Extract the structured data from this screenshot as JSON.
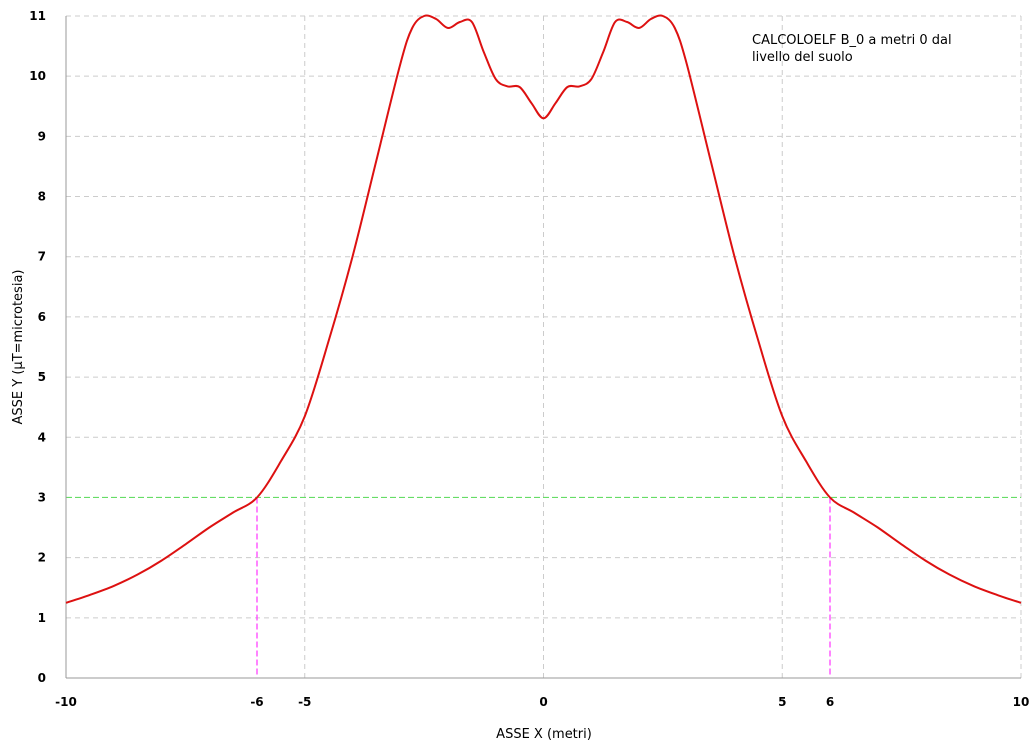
{
  "chart_data": {
    "type": "line",
    "title": "",
    "xlabel": "ASSE X (metri)",
    "ylabel": "ASSE Y (µT=microtesia)",
    "xlim": [
      -10,
      10
    ],
    "ylim": [
      0,
      11
    ],
    "grid": true,
    "annotation_lines": [
      "CALCOLOELF B_0 a metri 0 dal",
      "livello del suolo"
    ],
    "x_ticks": [
      -10,
      -6,
      -5,
      0,
      5,
      6,
      10
    ],
    "y_ticks": [
      0,
      1,
      2,
      3,
      4,
      5,
      6,
      7,
      8,
      9,
      10,
      11
    ],
    "threshold": {
      "y": 3,
      "color": "#66dd66"
    },
    "markers": [
      {
        "x": -6,
        "color": "#ff33ff"
      },
      {
        "x": 6,
        "color": "#ff33ff"
      }
    ],
    "series": [
      {
        "color": "#dd1111",
        "points": [
          [
            -10,
            1.25
          ],
          [
            -9.5,
            1.38
          ],
          [
            -9,
            1.53
          ],
          [
            -8.5,
            1.72
          ],
          [
            -8,
            1.95
          ],
          [
            -7.5,
            2.22
          ],
          [
            -7,
            2.5
          ],
          [
            -6.5,
            2.75
          ],
          [
            -6,
            3.0
          ],
          [
            -5.5,
            3.6
          ],
          [
            -5,
            4.35
          ],
          [
            -4.5,
            5.6
          ],
          [
            -4,
            7.0
          ],
          [
            -3.5,
            8.6
          ],
          [
            -3,
            10.2
          ],
          [
            -2.75,
            10.8
          ],
          [
            -2.5,
            11.0
          ],
          [
            -2.25,
            10.95
          ],
          [
            -2.0,
            10.8
          ],
          [
            -1.75,
            10.9
          ],
          [
            -1.5,
            10.9
          ],
          [
            -1.25,
            10.4
          ],
          [
            -1.0,
            9.95
          ],
          [
            -0.75,
            9.83
          ],
          [
            -0.5,
            9.82
          ],
          [
            -0.25,
            9.55
          ],
          [
            0,
            9.3
          ],
          [
            0.25,
            9.55
          ],
          [
            0.5,
            9.82
          ],
          [
            0.75,
            9.83
          ],
          [
            1.0,
            9.95
          ],
          [
            1.25,
            10.4
          ],
          [
            1.5,
            10.9
          ],
          [
            1.75,
            10.9
          ],
          [
            2.0,
            10.8
          ],
          [
            2.25,
            10.95
          ],
          [
            2.5,
            11.0
          ],
          [
            2.75,
            10.8
          ],
          [
            3,
            10.2
          ],
          [
            3.5,
            8.6
          ],
          [
            4,
            7.0
          ],
          [
            4.5,
            5.6
          ],
          [
            5,
            4.35
          ],
          [
            5.5,
            3.6
          ],
          [
            6,
            3.0
          ],
          [
            6.5,
            2.75
          ],
          [
            7,
            2.5
          ],
          [
            7.5,
            2.22
          ],
          [
            8,
            1.95
          ],
          [
            8.5,
            1.72
          ],
          [
            9,
            1.53
          ],
          [
            9.5,
            1.38
          ],
          [
            10,
            1.25
          ]
        ]
      }
    ]
  }
}
